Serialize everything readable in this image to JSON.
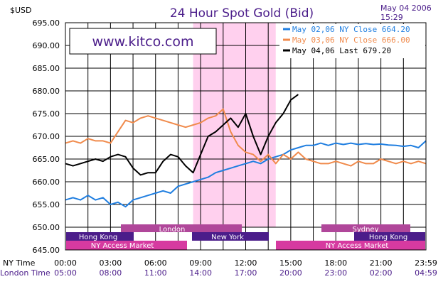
{
  "header": {
    "currency": "$USD",
    "title": "24 Hour Spot Gold (Bid)",
    "date": "May 04 2006",
    "time": "15:29"
  },
  "watermark": "www.kitco.com",
  "colors": {
    "may02": "#1f7ee0",
    "may03": "#f08a4b",
    "may04": "#000000",
    "london_band": "#ffd0ee",
    "session_bar": "#b0479a",
    "session_bar_alt": "#d63aa0"
  },
  "legend": [
    {
      "key": "may02",
      "date": "May 02,06",
      "kind": "NY Close",
      "value": "664.20"
    },
    {
      "key": "may03",
      "date": "May 03,06",
      "kind": "NY Close",
      "value": "666.00"
    },
    {
      "key": "may04",
      "date": "May 04,06",
      "kind": "Last",
      "value": "679.20"
    }
  ],
  "axes": {
    "x_row1_label": "NY Time",
    "x_row2_label": "London Time",
    "ny_ticks": [
      "00:00",
      "03:00",
      "06:00",
      "09:00",
      "12:00",
      "15:00",
      "18:00",
      "21:00",
      "23:59"
    ],
    "london_ticks": [
      "05:00",
      "08:00",
      "11:00",
      "14:00",
      "17:00",
      "20:00",
      "23:00",
      "02:00",
      "04:59"
    ]
  },
  "sessions": {
    "london": "London",
    "hong_kong": "Hong Kong",
    "new_york": "New York",
    "sydney": "Sydney",
    "ny_access": "NY Access Market"
  },
  "chart_data": {
    "type": "line",
    "title": "24 Hour Spot Gold (Bid)",
    "ylabel": "$USD",
    "xlabel": "NY Time",
    "x_unit": "hours (NY time)",
    "xlim": [
      0,
      24
    ],
    "ylim": [
      645,
      695
    ],
    "y_ticks": [
      645,
      650,
      655,
      660,
      665,
      670,
      675,
      680,
      685,
      690,
      695
    ],
    "grid": true,
    "legend_position": "top-right",
    "shaded_region": [
      8.5,
      14
    ],
    "series": [
      {
        "name": "May 02,06 NY Close 664.20",
        "color_key": "may02",
        "x": [
          0,
          0.5,
          1,
          1.5,
          2,
          2.5,
          3,
          3.5,
          4,
          4.5,
          5,
          5.5,
          6,
          6.5,
          7,
          7.5,
          8,
          8.5,
          9,
          9.5,
          10,
          10.5,
          11,
          11.5,
          12,
          12.5,
          13,
          13.5,
          14,
          14.5,
          15,
          15.5,
          16,
          16.5,
          17,
          17.5,
          18,
          18.5,
          19,
          19.5,
          20,
          20.5,
          21,
          21.5,
          22,
          22.5,
          23,
          23.5,
          24
        ],
        "y": [
          656,
          656.5,
          656,
          657,
          656,
          656.5,
          655,
          655.5,
          654.5,
          656,
          656.5,
          657,
          657.5,
          658,
          657.5,
          659,
          659.5,
          660,
          660.5,
          661,
          662,
          662.5,
          663,
          663.5,
          664,
          664.5,
          664,
          665,
          665.5,
          666,
          667,
          667.5,
          668,
          668,
          668.5,
          668,
          668.5,
          668.2,
          668.5,
          668.2,
          668.4,
          668.2,
          668.3,
          668.1,
          668,
          667.8,
          668,
          667.5,
          669
        ]
      },
      {
        "name": "May 03,06 NY Close 666.00",
        "color_key": "may03",
        "x": [
          0,
          0.5,
          1,
          1.5,
          2,
          2.5,
          3,
          3.5,
          4,
          4.5,
          5,
          5.5,
          6,
          6.5,
          7,
          7.5,
          8,
          8.5,
          9,
          9.5,
          10,
          10.5,
          11,
          11.5,
          12,
          12.5,
          13,
          13.5,
          14,
          14.5,
          15,
          15.5,
          16,
          16.5,
          17,
          17.5,
          18,
          18.5,
          19,
          19.5,
          20,
          20.5,
          21,
          21.5,
          22,
          22.5,
          23,
          23.5,
          24
        ],
        "y": [
          668.5,
          669,
          668.5,
          669.5,
          669,
          669,
          668.5,
          671,
          673.5,
          673,
          674,
          674.5,
          674,
          673.5,
          673,
          672.5,
          672,
          672.5,
          673,
          674,
          674.5,
          676,
          671,
          668,
          666.5,
          666,
          664.5,
          666,
          664,
          666,
          665,
          666.5,
          665,
          664.5,
          664,
          664,
          664.5,
          664,
          663.5,
          664.5,
          664,
          664,
          665,
          664.5,
          664,
          664.5,
          664,
          664.5,
          664
        ]
      },
      {
        "name": "May 04,06 Last 679.20",
        "color_key": "may04",
        "x": [
          0,
          0.5,
          1,
          1.5,
          2,
          2.5,
          3,
          3.5,
          4,
          4.5,
          5,
          5.5,
          6,
          6.5,
          7,
          7.5,
          8,
          8.5,
          9,
          9.5,
          10,
          10.5,
          11,
          11.5,
          12,
          12.5,
          13,
          13.5,
          14,
          14.5,
          15,
          15.5
        ],
        "y": [
          664,
          663.5,
          664,
          664.5,
          665,
          664.5,
          665.5,
          666,
          665.5,
          663,
          661.5,
          662,
          662,
          664.5,
          666,
          665.5,
          663.5,
          662,
          666,
          670,
          671,
          672.5,
          674,
          672,
          675,
          670,
          666,
          670,
          673,
          675,
          678,
          679.2
        ]
      }
    ]
  }
}
